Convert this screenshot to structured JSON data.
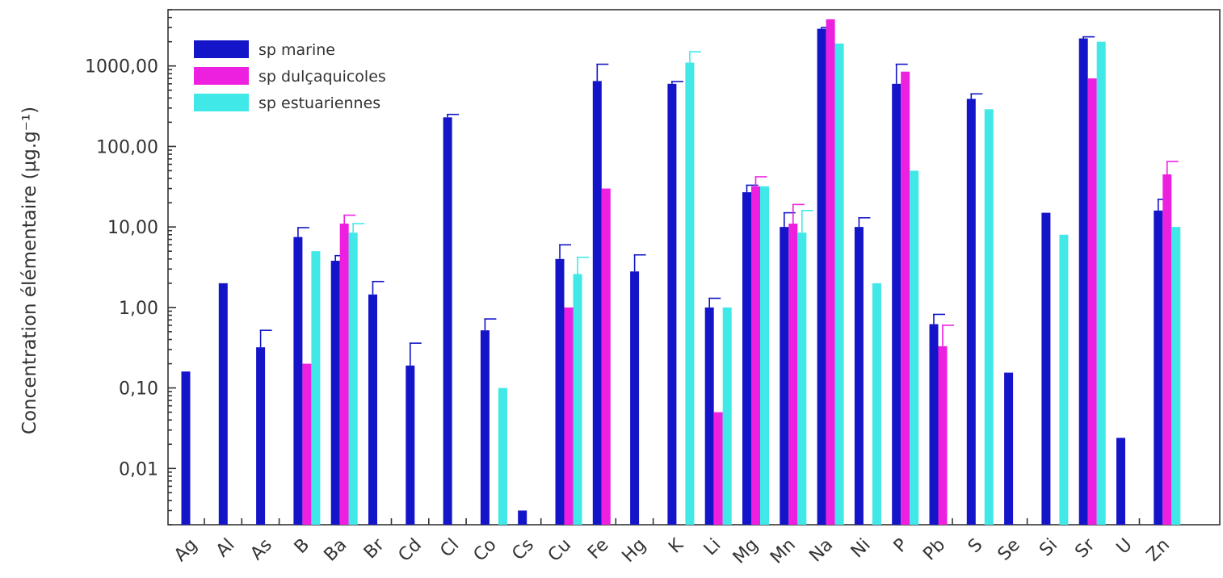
{
  "chart_data": {
    "type": "bar",
    "yscale": "log",
    "ylim": [
      0.002,
      5000
    ],
    "yticks": [
      {
        "value": 0.01,
        "label": "0,01"
      },
      {
        "value": 0.1,
        "label": "0,10"
      },
      {
        "value": 1,
        "label": "1,00"
      },
      {
        "value": 10,
        "label": "10,00"
      },
      {
        "value": 100,
        "label": "100,00"
      },
      {
        "value": 1000,
        "label": "1000,00"
      }
    ],
    "ylabel": "Concentration élémentaire (µg.g⁻¹)",
    "xlabel": "",
    "grid": false,
    "legend_position": "top-left",
    "categories": [
      "Ag",
      "Al",
      "As",
      "B",
      "Ba",
      "Br",
      "Cd",
      "Cl",
      "Co",
      "Cs",
      "Cu",
      "Fe",
      "Hg",
      "K",
      "Li",
      "Mg",
      "Mn",
      "Na",
      "Ni",
      "P",
      "Pb",
      "S",
      "Se",
      "Si",
      "Sr",
      "U",
      "Zn"
    ],
    "series": [
      {
        "name": "sp marine",
        "color": "#1414c8",
        "values": [
          0.16,
          2.0,
          0.32,
          7.5,
          3.8,
          1.45,
          0.19,
          230,
          0.52,
          0.003,
          4.0,
          650,
          2.8,
          600,
          1.0,
          27,
          10,
          2900,
          10,
          600,
          0.62,
          390,
          0.155,
          15,
          2200,
          0.024,
          16
        ],
        "errors": [
          null,
          null,
          0.52,
          9.8,
          4.4,
          2.1,
          0.36,
          250,
          0.72,
          null,
          6.0,
          1050,
          4.5,
          640,
          1.3,
          33,
          15,
          3000,
          13,
          1050,
          0.82,
          450,
          null,
          null,
          2300,
          null,
          22
        ]
      },
      {
        "name": "sp dulçaquicoles",
        "color": "#ee20e0",
        "values": [
          null,
          null,
          null,
          0.2,
          11,
          null,
          null,
          null,
          null,
          null,
          1.0,
          30,
          null,
          null,
          0.05,
          32,
          11,
          3800,
          null,
          850,
          0.33,
          null,
          null,
          null,
          700,
          null,
          45
        ],
        "errors": [
          null,
          null,
          null,
          null,
          14,
          null,
          null,
          null,
          null,
          null,
          null,
          null,
          null,
          null,
          null,
          42,
          19,
          null,
          null,
          null,
          0.6,
          null,
          null,
          null,
          null,
          null,
          65
        ]
      },
      {
        "name": "sp estuariennes",
        "color": "#40e8e8",
        "values": [
          null,
          null,
          null,
          5.0,
          8.5,
          null,
          null,
          null,
          0.1,
          null,
          2.6,
          null,
          null,
          1100,
          1.0,
          32,
          8.5,
          1900,
          2.0,
          50,
          null,
          290,
          null,
          8.0,
          2000,
          null,
          10
        ],
        "errors": [
          null,
          null,
          null,
          null,
          11,
          null,
          null,
          null,
          null,
          null,
          4.2,
          null,
          null,
          1500,
          null,
          null,
          16,
          null,
          null,
          null,
          null,
          null,
          null,
          null,
          null,
          null,
          null
        ]
      }
    ]
  }
}
